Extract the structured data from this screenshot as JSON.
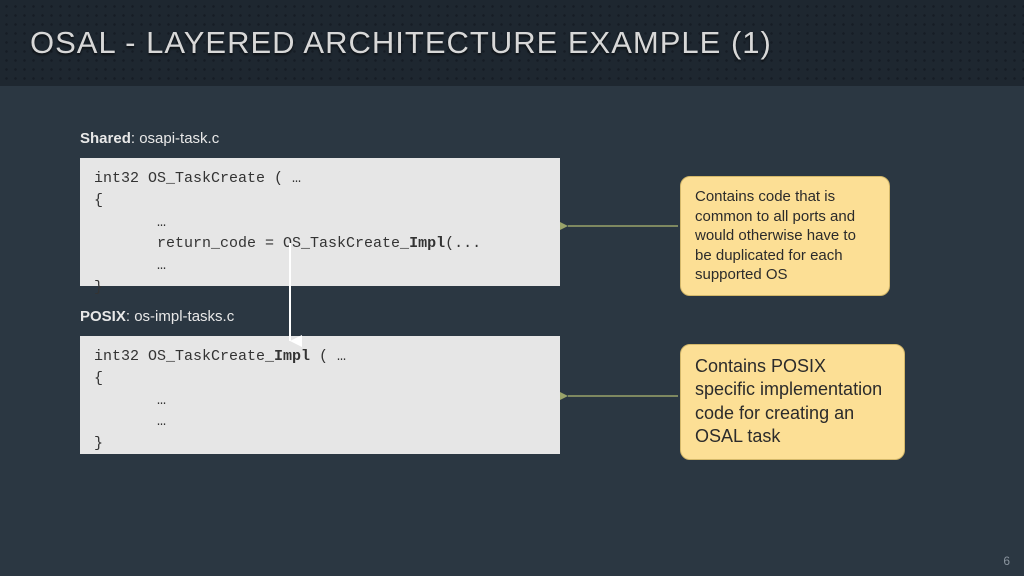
{
  "title": "OSAL - LAYERED ARCHITECTURE EXAMPLE (1)",
  "page_number": "6",
  "block1": {
    "label_bold": "Shared",
    "label_rest": ": osapi-task.c",
    "code_pre": "int32 OS_TaskCreate ( …\n{\n       …\n       return_code = OS_TaskCreate_",
    "code_bold": "Impl",
    "code_post": "(...\n       …\n}"
  },
  "block2": {
    "label_bold": "POSIX",
    "label_rest": ": os-impl-tasks.c",
    "code_pre": "int32 OS_TaskCreate_",
    "code_bold": "Impl",
    "code_post": " ( …\n{\n       …\n       …\n}"
  },
  "callout1": "Contains code that is common to all ports and would otherwise have to be duplicated for each supported OS",
  "callout2": "Contains POSIX specific implementation code for creating an OSAL task",
  "colors": {
    "bg": "#2b3742",
    "header_bg": "#1e2730",
    "code_bg": "#e6e6e6",
    "callout_bg": "#fcdf95",
    "callout_border": "#d4b86a",
    "arrow_olive": "#9aa36a",
    "arrow_white": "#ffffff"
  }
}
